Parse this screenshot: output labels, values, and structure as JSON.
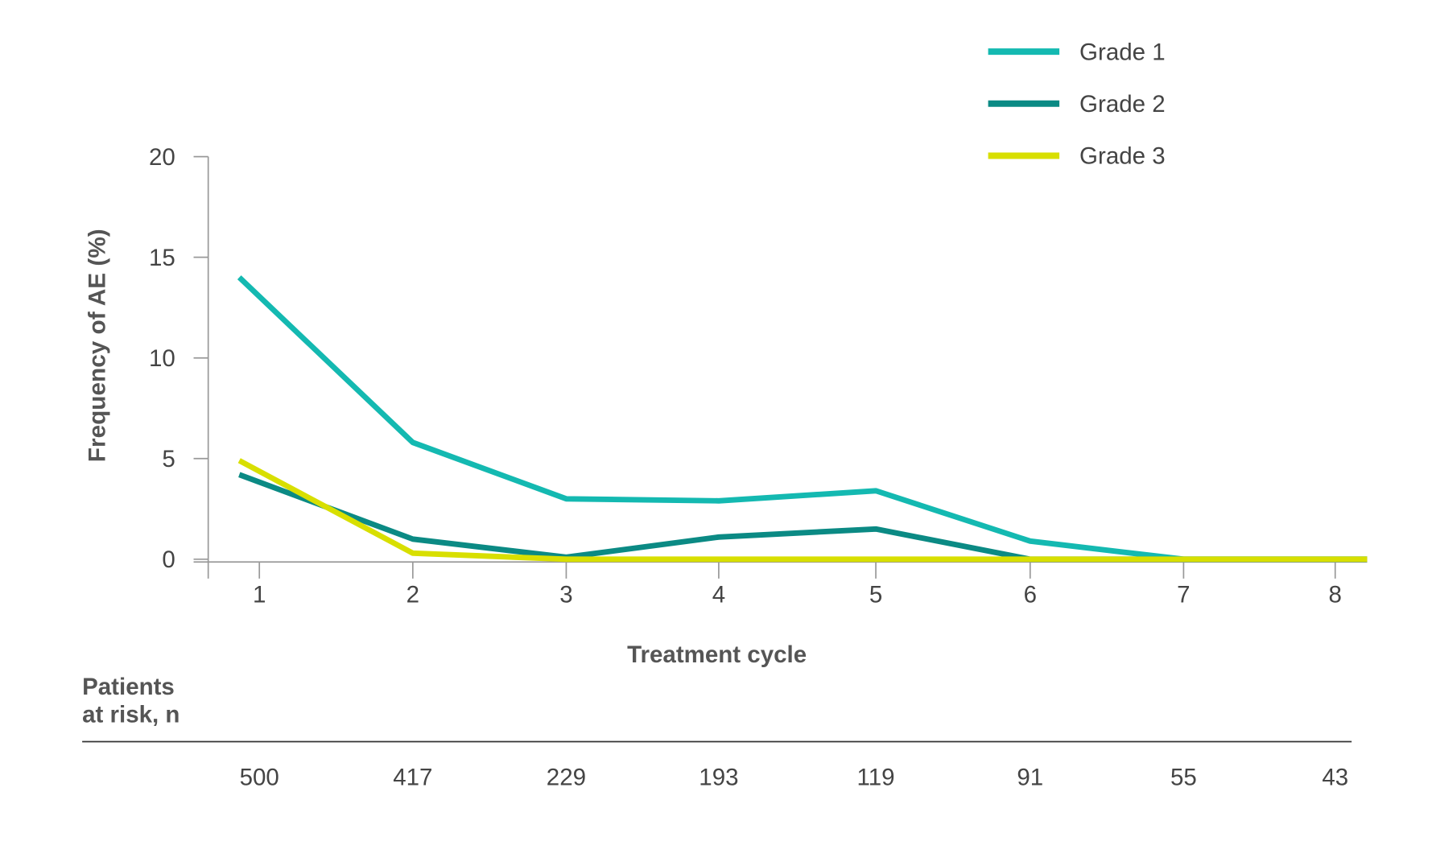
{
  "chart_data": {
    "type": "line",
    "xlabel": "Treatment cycle",
    "ylabel": "Frequency of AE (%)",
    "x": [
      1,
      2,
      3,
      4,
      5,
      6,
      7,
      8
    ],
    "x_tick_labels": [
      "1",
      "2",
      "3",
      "4",
      "5",
      "6",
      "7",
      "8"
    ],
    "y_tick_labels": [
      "0",
      "5",
      "10",
      "15",
      "20"
    ],
    "ylim": [
      0,
      20
    ],
    "grid": false,
    "legend_position": "top-right",
    "series": [
      {
        "name": "Grade 1",
        "color": "#14b9b1",
        "values": [
          14.0,
          5.8,
          3.0,
          2.9,
          3.4,
          0.9,
          0,
          0
        ]
      },
      {
        "name": "Grade 2",
        "color": "#0b8a84",
        "values": [
          4.2,
          1.0,
          0.1,
          1.1,
          1.5,
          0.0,
          0.0,
          0.0
        ]
      },
      {
        "name": "Grade 3",
        "color": "#d8df00",
        "values": [
          4.9,
          0.3,
          0.0,
          0.0,
          0.0,
          0.0,
          0.0,
          0.0
        ]
      }
    ],
    "risk_table": {
      "label_line1": "Patients",
      "label_line2": "at risk, n",
      "values": [
        "500",
        "417",
        "229",
        "193",
        "119",
        "91",
        "55",
        "43"
      ]
    }
  }
}
